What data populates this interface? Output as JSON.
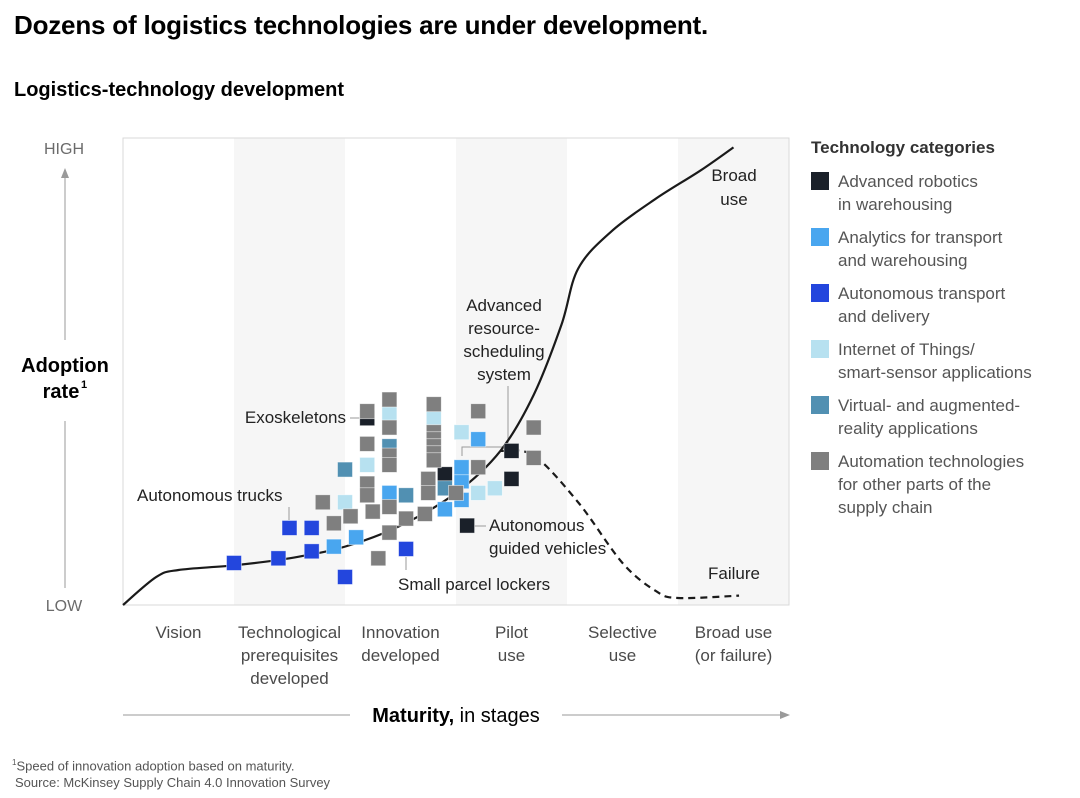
{
  "title": "Dozens of logistics technologies are under development.",
  "subtitle": "Logistics-technology development",
  "footnote": {
    "note": "Speed of innovation adoption based on maturity.",
    "note_marker": "1",
    "source": "Source: McKinsey Supply Chain 4.0 Innovation Survey"
  },
  "chart_data": {
    "type": "scatter",
    "title": "Logistics-technology development",
    "ylabel": "Adoption rate",
    "ylabel_superscript": "1",
    "y_ticks": [
      "HIGH",
      "LOW"
    ],
    "xlabel_bold": "Maturity,",
    "xlabel_rest": " in stages",
    "xlim": [
      0,
      6
    ],
    "ylim": [
      0,
      1
    ],
    "stages": [
      [
        "Vision"
      ],
      [
        "Technological",
        "prerequisites",
        "developed"
      ],
      [
        "Innovation",
        "developed"
      ],
      [
        "Pilot",
        "use"
      ],
      [
        "Selective",
        "use"
      ],
      [
        "Broad use",
        "(or failure)"
      ]
    ],
    "shaded_stages": [
      1,
      3,
      5
    ],
    "curve_success": [
      [
        0,
        0
      ],
      [
        0.3,
        0.06
      ],
      [
        0.5,
        0.075
      ],
      [
        1.0,
        0.085
      ],
      [
        1.5,
        0.1
      ],
      [
        2.0,
        0.125
      ],
      [
        2.5,
        0.17
      ],
      [
        3.0,
        0.24
      ],
      [
        3.4,
        0.33
      ],
      [
        3.7,
        0.45
      ],
      [
        3.95,
        0.6
      ],
      [
        4.1,
        0.72
      ],
      [
        4.4,
        0.8
      ],
      [
        4.8,
        0.87
      ],
      [
        5.2,
        0.93
      ],
      [
        5.5,
        0.98
      ]
    ],
    "curve_failure": [
      [
        3.4,
        0.33
      ],
      [
        3.7,
        0.32
      ],
      [
        4.1,
        0.22
      ],
      [
        4.5,
        0.09
      ],
      [
        4.8,
        0.03
      ],
      [
        5.0,
        0.015
      ],
      [
        5.55,
        0.02
      ]
    ],
    "curve_labels": {
      "success": [
        "Broad",
        "use"
      ],
      "failure": [
        "Failure"
      ]
    },
    "legend_title": "Technology categories",
    "categories": [
      {
        "key": "robotics",
        "label": [
          "Advanced robotics",
          "in warehousing"
        ],
        "color": "#1a2029"
      },
      {
        "key": "analytics",
        "label": [
          "Analytics for transport",
          "and warehousing"
        ],
        "color": "#49a6ef"
      },
      {
        "key": "autonomous",
        "label": [
          "Autonomous transport",
          "and delivery"
        ],
        "color": "#2346dd"
      },
      {
        "key": "iot",
        "label": [
          "Internet of Things/",
          "smart-sensor applications"
        ],
        "color": "#b7e1f0"
      },
      {
        "key": "vrar",
        "label": [
          "Virtual- and augmented-",
          "reality applications"
        ],
        "color": "#5190b2"
      },
      {
        "key": "automation",
        "label": [
          "Automation technologies",
          "for other parts of the",
          "supply chain"
        ],
        "color": "#7f7f7f"
      }
    ],
    "points": [
      {
        "cat": "autonomous",
        "x": 1.0,
        "y": 0.09
      },
      {
        "cat": "autonomous",
        "x": 1.4,
        "y": 0.1
      },
      {
        "cat": "autonomous",
        "x": 1.5,
        "y": 0.165
      },
      {
        "cat": "autonomous",
        "x": 1.7,
        "y": 0.165
      },
      {
        "cat": "autonomous",
        "x": 1.7,
        "y": 0.115
      },
      {
        "cat": "autonomous",
        "x": 2.0,
        "y": 0.06
      },
      {
        "cat": "autonomous",
        "x": 2.55,
        "y": 0.12
      },
      {
        "cat": "analytics",
        "x": 1.9,
        "y": 0.125
      },
      {
        "cat": "analytics",
        "x": 2.1,
        "y": 0.145
      },
      {
        "cat": "analytics",
        "x": 2.4,
        "y": 0.24
      },
      {
        "cat": "analytics",
        "x": 2.9,
        "y": 0.205
      },
      {
        "cat": "analytics",
        "x": 3.05,
        "y": 0.225
      },
      {
        "cat": "analytics",
        "x": 3.05,
        "y": 0.265
      },
      {
        "cat": "analytics",
        "x": 3.05,
        "y": 0.295
      },
      {
        "cat": "analytics",
        "x": 3.2,
        "y": 0.355
      },
      {
        "cat": "robotics",
        "x": 2.2,
        "y": 0.4
      },
      {
        "cat": "robotics",
        "x": 2.9,
        "y": 0.28
      },
      {
        "cat": "robotics",
        "x": 3.5,
        "y": 0.33
      },
      {
        "cat": "robotics",
        "x": 3.5,
        "y": 0.27
      },
      {
        "cat": "robotics",
        "x": 3.1,
        "y": 0.17
      },
      {
        "cat": "iot",
        "x": 2.0,
        "y": 0.22
      },
      {
        "cat": "iot",
        "x": 2.2,
        "y": 0.26
      },
      {
        "cat": "iot",
        "x": 2.2,
        "y": 0.3
      },
      {
        "cat": "iot",
        "x": 2.4,
        "y": 0.41
      },
      {
        "cat": "iot",
        "x": 2.8,
        "y": 0.4
      },
      {
        "cat": "iot",
        "x": 3.05,
        "y": 0.37
      },
      {
        "cat": "iot",
        "x": 3.2,
        "y": 0.24
      },
      {
        "cat": "iot",
        "x": 3.35,
        "y": 0.25
      },
      {
        "cat": "vrar",
        "x": 2.0,
        "y": 0.29
      },
      {
        "cat": "vrar",
        "x": 2.4,
        "y": 0.34
      },
      {
        "cat": "vrar",
        "x": 2.55,
        "y": 0.235
      },
      {
        "cat": "vrar",
        "x": 2.9,
        "y": 0.25
      },
      {
        "cat": "automation",
        "x": 1.8,
        "y": 0.22
      },
      {
        "cat": "automation",
        "x": 1.9,
        "y": 0.175
      },
      {
        "cat": "automation",
        "x": 2.05,
        "y": 0.19
      },
      {
        "cat": "automation",
        "x": 2.2,
        "y": 0.415
      },
      {
        "cat": "automation",
        "x": 2.2,
        "y": 0.345
      },
      {
        "cat": "automation",
        "x": 2.2,
        "y": 0.26
      },
      {
        "cat": "automation",
        "x": 2.2,
        "y": 0.235
      },
      {
        "cat": "automation",
        "x": 2.25,
        "y": 0.2
      },
      {
        "cat": "automation",
        "x": 2.4,
        "y": 0.44
      },
      {
        "cat": "automation",
        "x": 2.4,
        "y": 0.38
      },
      {
        "cat": "automation",
        "x": 2.4,
        "y": 0.32
      },
      {
        "cat": "automation",
        "x": 2.4,
        "y": 0.3
      },
      {
        "cat": "automation",
        "x": 2.4,
        "y": 0.21
      },
      {
        "cat": "automation",
        "x": 2.4,
        "y": 0.155
      },
      {
        "cat": "automation",
        "x": 2.55,
        "y": 0.185
      },
      {
        "cat": "automation",
        "x": 2.3,
        "y": 0.1
      },
      {
        "cat": "automation",
        "x": 2.75,
        "y": 0.27
      },
      {
        "cat": "automation",
        "x": 2.75,
        "y": 0.24
      },
      {
        "cat": "automation",
        "x": 2.72,
        "y": 0.195
      },
      {
        "cat": "automation",
        "x": 2.8,
        "y": 0.43
      },
      {
        "cat": "automation",
        "x": 2.8,
        "y": 0.37
      },
      {
        "cat": "automation",
        "x": 2.8,
        "y": 0.355
      },
      {
        "cat": "automation",
        "x": 2.8,
        "y": 0.34
      },
      {
        "cat": "automation",
        "x": 2.8,
        "y": 0.325
      },
      {
        "cat": "automation",
        "x": 2.8,
        "y": 0.31
      },
      {
        "cat": "automation",
        "x": 3.2,
        "y": 0.415
      },
      {
        "cat": "automation",
        "x": 3.2,
        "y": 0.295
      },
      {
        "cat": "automation",
        "x": 3.0,
        "y": 0.24
      },
      {
        "cat": "automation",
        "x": 3.7,
        "y": 0.38
      },
      {
        "cat": "automation",
        "x": 3.7,
        "y": 0.315
      }
    ],
    "annotations": [
      {
        "key": "exoskeletons",
        "lines": [
          "Exoskeletons"
        ]
      },
      {
        "key": "autonomous-trucks",
        "lines": [
          "Autonomous trucks"
        ]
      },
      {
        "key": "resource-scheduling",
        "lines": [
          "Advanced",
          "resource-",
          "scheduling",
          "system"
        ]
      },
      {
        "key": "agv",
        "lines": [
          "Autonomous",
          "guided vehicles"
        ]
      },
      {
        "key": "parcel-lockers",
        "lines": [
          "Small parcel lockers"
        ]
      }
    ]
  }
}
